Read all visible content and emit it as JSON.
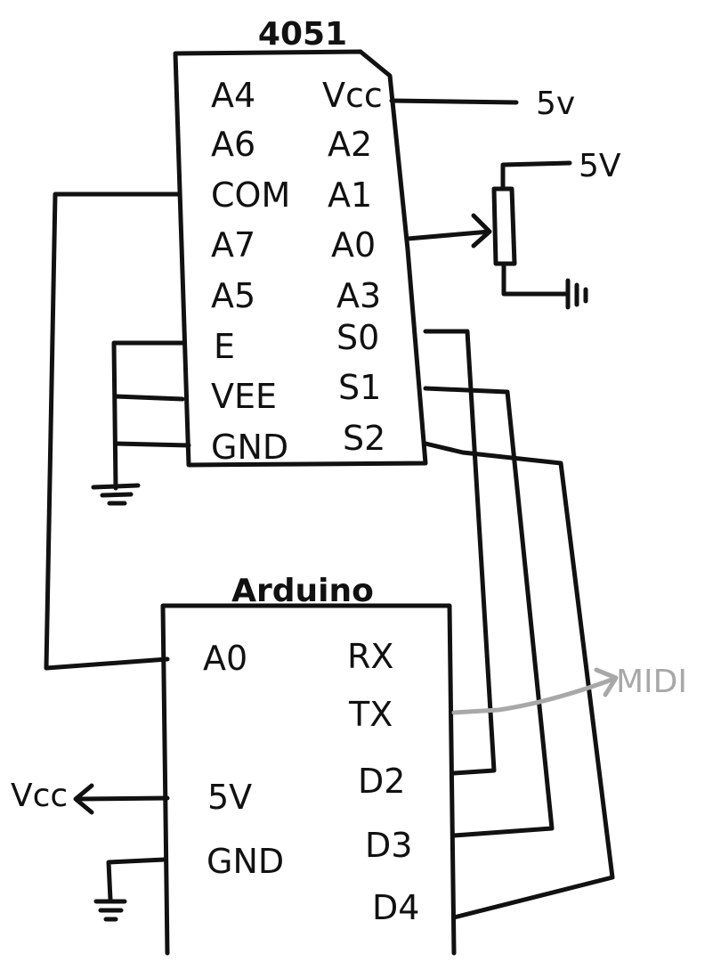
{
  "chip": {
    "title": "4051",
    "left_pins": [
      "A4",
      "A6",
      "COM",
      "A7",
      "A5",
      "E",
      "VEE",
      "GND"
    ],
    "right_pins": [
      "Vcc",
      "A2",
      "A1",
      "A0",
      "A3",
      "S0",
      "S1",
      "S2"
    ],
    "vcc_supply": "5v"
  },
  "potentiometer": {
    "supply": "5V"
  },
  "arduino": {
    "title": "Arduino",
    "left_pins": [
      "A0",
      "5V",
      "GND"
    ],
    "right_pins": [
      "RX",
      "TX",
      "D2",
      "D3",
      "D4"
    ],
    "vcc_out": "Vcc"
  },
  "midi": {
    "label": "MIDI",
    "color": "#a8a8a8"
  }
}
